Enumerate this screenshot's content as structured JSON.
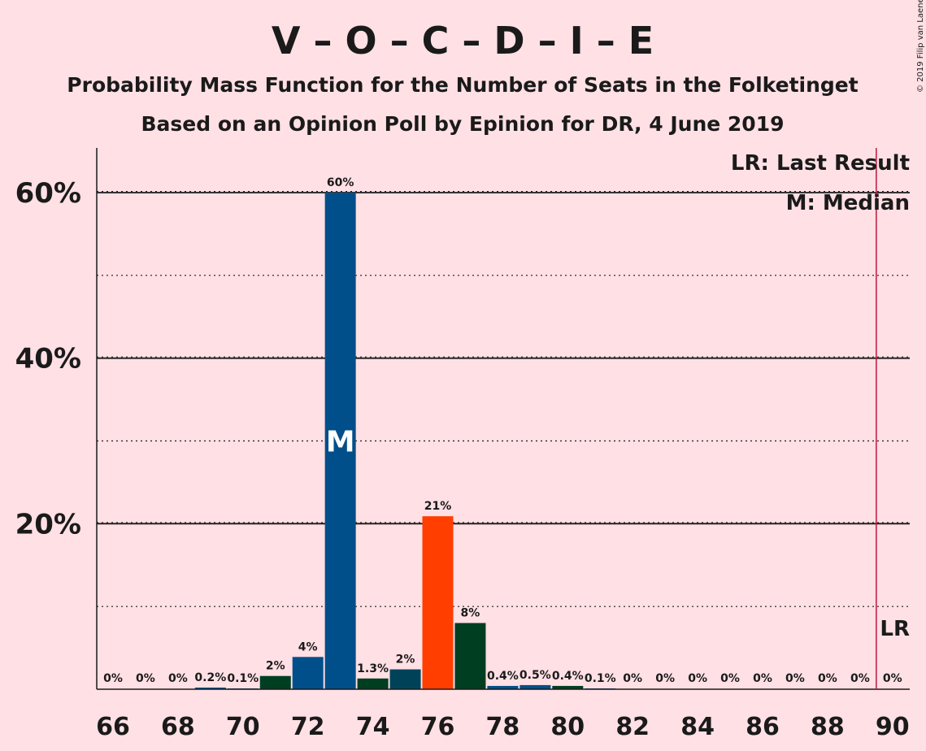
{
  "title": "V – O – C – D – I – E",
  "subtitle1": "Probability Mass Function for the Number of Seats in the Folketinget",
  "subtitle2": "Based on an Opinion Poll by Epinion for DR, 4 June 2019",
  "credit": "© 2019 Filip van Laenen",
  "legend": {
    "lr": "LR: Last Result",
    "m": "M: Median"
  },
  "median_marker": "M",
  "last_result_marker": "LR",
  "colors": {
    "background": "#FFE0E5",
    "blue": "#004F8A",
    "orange": "#FF3E00",
    "darkgreen": "#003E22",
    "teal": "#004359",
    "lr_line": "#C0143C"
  },
  "chart_data": {
    "type": "bar",
    "x": [
      66,
      67,
      68,
      69,
      70,
      71,
      72,
      73,
      74,
      75,
      76,
      77,
      78,
      79,
      80,
      81,
      82,
      83,
      84,
      85,
      86,
      87,
      88,
      89,
      90
    ],
    "values": [
      0,
      0,
      0,
      0.2,
      0.1,
      1.6,
      3.9,
      60.0,
      1.3,
      2.4,
      20.9,
      8.0,
      0.4,
      0.5,
      0.4,
      0.1,
      0,
      0,
      0,
      0,
      0,
      0,
      0,
      0,
      0
    ],
    "labels": [
      "0%",
      "0%",
      "0%",
      "0.2%",
      "0.1%",
      "2%",
      "4%",
      "60%",
      "1.3%",
      "2%",
      "21%",
      "8%",
      "0.4%",
      "0.5%",
      "0.4%",
      "0.1%",
      "0%",
      "0%",
      "0%",
      "0%",
      "0%",
      "0%",
      "0%",
      "0%",
      "0%"
    ],
    "bar_colors": [
      "#004F8A",
      "#004F8A",
      "#004F8A",
      "#004F8A",
      "#004F8A",
      "#003E22",
      "#004F8A",
      "#004F8A",
      "#003E22",
      "#004359",
      "#FF3E00",
      "#003E22",
      "#004F8A",
      "#004F8A",
      "#003E22",
      "#004F8A",
      "#004F8A",
      "#004F8A",
      "#004F8A",
      "#004F8A",
      "#004F8A",
      "#004F8A",
      "#004F8A",
      "#004F8A",
      "#004F8A"
    ],
    "xticks": [
      "66",
      "68",
      "70",
      "72",
      "74",
      "76",
      "78",
      "80",
      "82",
      "84",
      "86",
      "88",
      "90"
    ],
    "yticks": [
      "20%",
      "40%",
      "60%"
    ],
    "ylim": [
      0,
      65
    ],
    "median": 73,
    "last_result": 89.5
  }
}
